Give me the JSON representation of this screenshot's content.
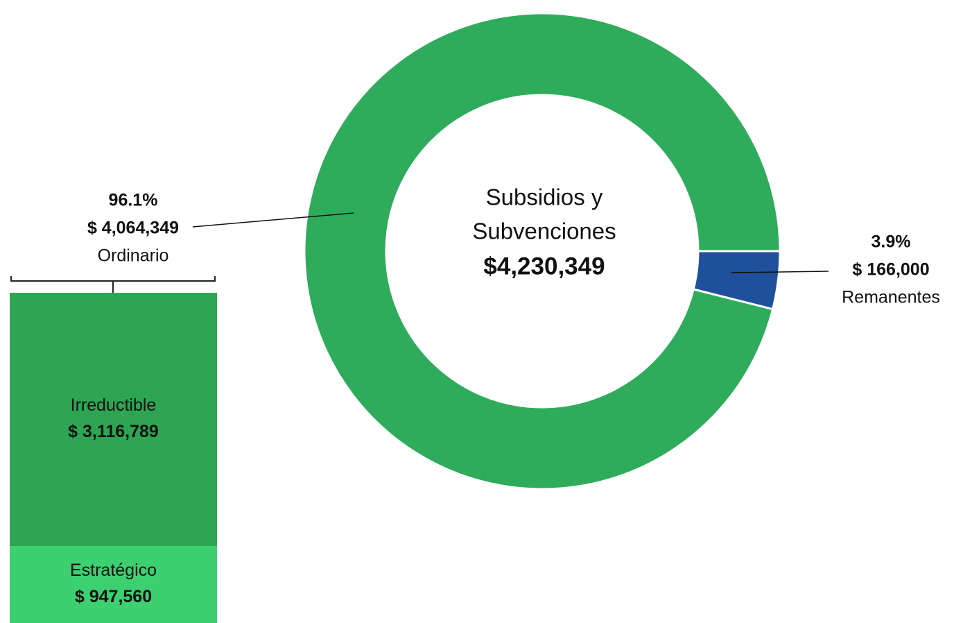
{
  "chart_data": [
    {
      "type": "donut",
      "title": "Subsidios y Subvenciones",
      "total": {
        "value": 4230349,
        "label": "$4,230,349"
      },
      "categories": [
        "Ordinario",
        "Remanentes"
      ],
      "values": [
        4064349,
        166000
      ],
      "value_labels": [
        "$ 4,064,349",
        "$ 166,000"
      ],
      "percent_labels": [
        "96.1%",
        "3.9%"
      ],
      "colors": [
        "#2eac5b",
        "#1f509c"
      ]
    },
    {
      "type": "stacked-bar",
      "categories": [
        "Irreductible",
        "Estratégico"
      ],
      "values": [
        3116789,
        947560
      ],
      "value_labels": [
        "$ 3,116,789",
        "$ 947,560"
      ],
      "colors": [
        "#2ea553",
        "#3dd071"
      ]
    }
  ]
}
